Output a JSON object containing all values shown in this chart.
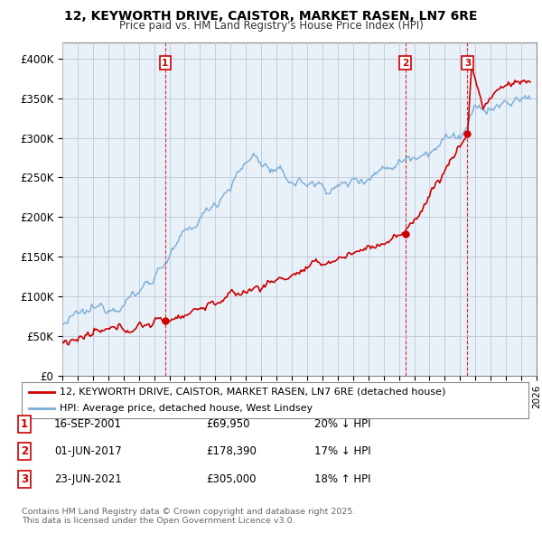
{
  "title_line1": "12, KEYWORTH DRIVE, CAISTOR, MARKET RASEN, LN7 6RE",
  "title_line2": "Price paid vs. HM Land Registry's House Price Index (HPI)",
  "ylim": [
    0,
    420000
  ],
  "yticks": [
    0,
    50000,
    100000,
    150000,
    200000,
    250000,
    300000,
    350000,
    400000
  ],
  "ytick_labels": [
    "£0",
    "£50K",
    "£100K",
    "£150K",
    "£200K",
    "£250K",
    "£300K",
    "£350K",
    "£400K"
  ],
  "sale_dates_num": [
    2001.72,
    2017.42,
    2021.48
  ],
  "sale_prices": [
    69950,
    178390,
    305000
  ],
  "sale_labels": [
    "1",
    "2",
    "3"
  ],
  "sale_color": "#cc0000",
  "hpi_color": "#7aaed6",
  "chart_bg": "#e8f0f8",
  "legend_sale": "12, KEYWORTH DRIVE, CAISTOR, MARKET RASEN, LN7 6RE (detached house)",
  "legend_hpi": "HPI: Average price, detached house, West Lindsey",
  "table_rows": [
    [
      "1",
      "16-SEP-2001",
      "£69,950",
      "20% ↓ HPI"
    ],
    [
      "2",
      "01-JUN-2017",
      "£178,390",
      "17% ↓ HPI"
    ],
    [
      "3",
      "23-JUN-2021",
      "£305,000",
      "18% ↑ HPI"
    ]
  ],
  "footnote": "Contains HM Land Registry data © Crown copyright and database right 2025.\nThis data is licensed under the Open Government Licence v3.0.",
  "background_color": "#ffffff",
  "grid_color": "#c0c8d8",
  "xmin": 1995,
  "xmax": 2026
}
